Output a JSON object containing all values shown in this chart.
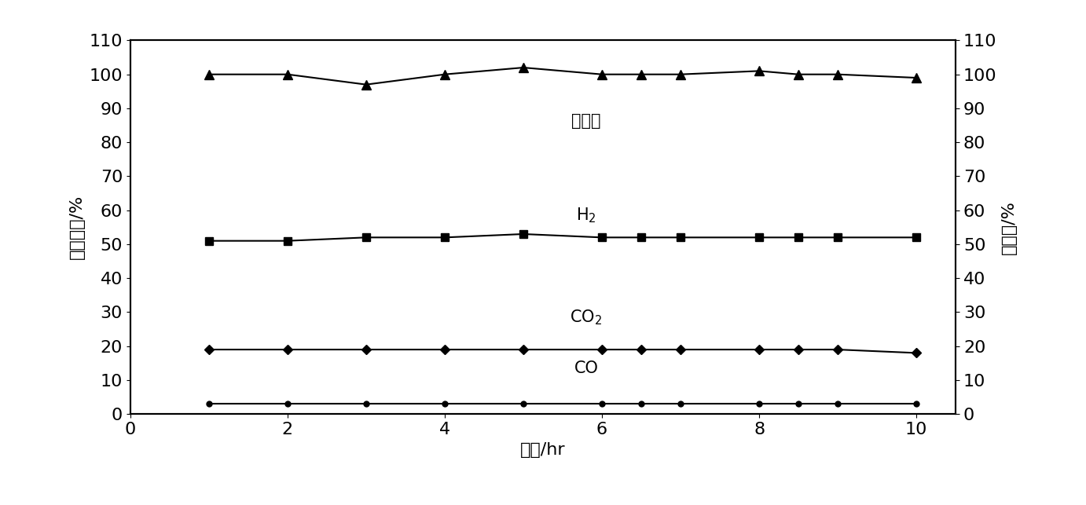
{
  "x": [
    1,
    2,
    3,
    4,
    5,
    6,
    6.5,
    7,
    8,
    8.5,
    9,
    10
  ],
  "conversion": [
    100,
    100,
    97,
    100,
    102,
    100,
    100,
    100,
    101,
    100,
    100,
    99
  ],
  "H2": [
    51,
    51,
    52,
    52,
    53,
    52,
    52,
    52,
    52,
    52,
    52,
    52
  ],
  "CO2": [
    19,
    19,
    19,
    19,
    19,
    19,
    19,
    19,
    19,
    19,
    19,
    18
  ],
  "CO": [
    3,
    3,
    3,
    3,
    3,
    3,
    3,
    3,
    3,
    3,
    3,
    3
  ],
  "xlabel": "时间/hr",
  "ylabel_left": "产物组成/%",
  "ylabel_right": "转化率/%",
  "label_conversion": "转化率",
  "label_H2": "H$_2$",
  "label_CO2": "CO$_2$",
  "label_CO": "CO",
  "xlim": [
    0,
    10.5
  ],
  "ylim_left": [
    0,
    110
  ],
  "ylim_right": [
    0,
    110
  ],
  "yticks": [
    0,
    10,
    20,
    30,
    40,
    50,
    60,
    70,
    80,
    90,
    100,
    110
  ],
  "xticks": [
    0,
    2,
    4,
    6,
    8,
    10
  ],
  "line_color": "#000000",
  "bg_color": "#ffffff",
  "font_size_label": 16,
  "font_size_tick": 16,
  "annotation_fontsize": 15
}
